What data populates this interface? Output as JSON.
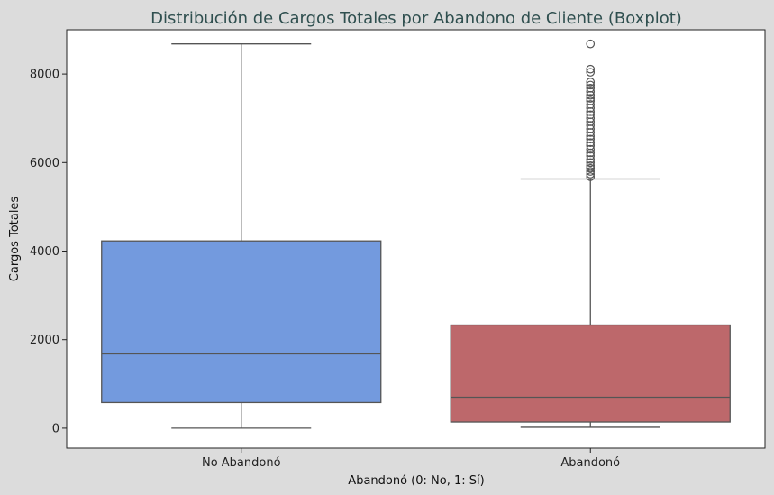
{
  "chart_data": {
    "type": "boxplot",
    "title": "Distribución de Cargos Totales por Abandono de Cliente (Boxplot)",
    "xlabel": "Abandonó (0: No, 1: Sí)",
    "ylabel": "Cargos Totales",
    "ylim": [
      -450,
      9000
    ],
    "yticks": [
      0,
      2000,
      4000,
      6000,
      8000
    ],
    "grid": false,
    "colors": {
      "title": "#2f4f4f",
      "background": "#dcdcdc",
      "plot_bg": "#ffffff",
      "line": "#555555"
    },
    "categories": [
      "No Abandonó",
      "Abandonó"
    ],
    "boxes": [
      {
        "category": "No Abandonó",
        "color": "#739ade",
        "whisker_low": 0,
        "q1": 580,
        "median": 1680,
        "q3": 4230,
        "whisker_high": 8680,
        "outliers": []
      },
      {
        "category": "Abandonó",
        "color": "#bd686b",
        "whisker_low": 20,
        "q1": 140,
        "median": 700,
        "q3": 2330,
        "whisker_high": 5630,
        "outliers": [
          5680,
          5740,
          5800,
          5870,
          5930,
          6000,
          6070,
          6150,
          6220,
          6300,
          6380,
          6450,
          6530,
          6600,
          6680,
          6760,
          6840,
          6920,
          7000,
          7080,
          7150,
          7230,
          7310,
          7390,
          7450,
          7520,
          7600,
          7680,
          7750,
          7820,
          8040,
          8110,
          8680
        ]
      }
    ]
  }
}
